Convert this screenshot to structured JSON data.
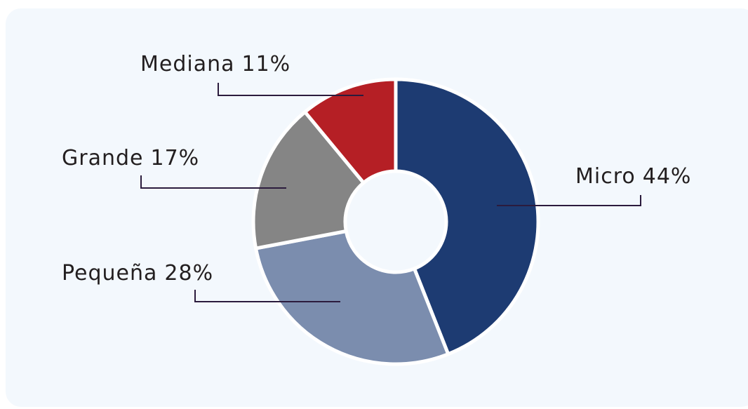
{
  "chart_data": {
    "type": "donut",
    "categories": [
      "Micro",
      "Pequeña",
      "Grande",
      "Mediana"
    ],
    "values": [
      44,
      28,
      17,
      11
    ],
    "value_labels": [
      "44%",
      "28%",
      "17%",
      "11%"
    ],
    "colors": [
      "#1d3b72",
      "#7b8dae",
      "#858585",
      "#b51f25"
    ]
  }
}
